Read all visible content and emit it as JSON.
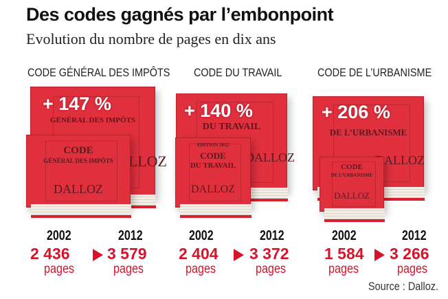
{
  "title": "Des codes gagnés par l’embonpoint",
  "subtitle": "Evolution du nombre de pages en dix ans",
  "colors": {
    "accent": "#d6132a",
    "book": "#e0303e"
  },
  "codes": [
    {
      "name": "CODE GÉNÉRAL DES IMPÔTS",
      "increase": "+ 147 %",
      "cover_title": "CODE",
      "cover_subtitle": "GÉNÉRAL DES IMPÔTS",
      "publisher": "DALLOZ",
      "year_from": "2002",
      "pages_from": "2 436",
      "year_to": "2012",
      "pages_to": "3 579",
      "unit": "pages"
    },
    {
      "name": "CODE DU TRAVAIL",
      "increase": "+ 140 %",
      "cover_title": "CODE",
      "cover_subtitle": "DU TRAVAIL",
      "edition": "EDITION 2012",
      "publisher": "DALLOZ",
      "year_from": "2002",
      "pages_from": "2 404",
      "year_to": "2012",
      "pages_to": "3 372",
      "unit": "pages"
    },
    {
      "name": "CODE DE L’URBANISME",
      "increase": "+ 206 %",
      "cover_title": "CODE",
      "cover_subtitle": "DE L’URBANISME",
      "publisher": "DALLOZ",
      "year_from": "2002",
      "pages_from": "1 584",
      "year_to": "2012",
      "pages_to": "3 266",
      "unit": "pages"
    }
  ],
  "source": "Source : Dalloz."
}
